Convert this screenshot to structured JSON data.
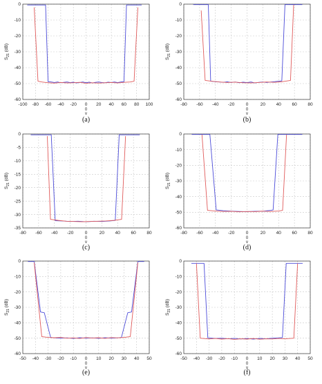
{
  "colors": {
    "blue": "#4a4ad8",
    "red": "#e05a5a",
    "grid": "#c8c8c8",
    "axis": "#333333"
  },
  "chart_data": [
    {
      "id": "a",
      "caption": "(a)",
      "type": "line",
      "ylabel": "S21 (dB)",
      "ylabel_main": "S",
      "ylabel_sub": "21",
      "ylabel_unit": "(dB)",
      "xlabel_zero": "0",
      "xlabel_symbol": "v",
      "xlim": [
        -100,
        100
      ],
      "ylim": [
        -60,
        0
      ],
      "xticks": [
        "-100",
        "-80",
        "-60",
        "-40",
        "-20",
        "0",
        "20",
        "40",
        "60",
        "80",
        "100"
      ],
      "yticks": [
        "0",
        "-10",
        "-20",
        "-30",
        "-40",
        "-50",
        "-60"
      ],
      "series": [
        {
          "color": "blue",
          "x": [
            -93,
            -64,
            -60,
            -55,
            -50,
            -45,
            -40,
            -35,
            -30,
            -25,
            -20,
            -15,
            -10,
            -5,
            0,
            5,
            10,
            15,
            20,
            25,
            30,
            35,
            40,
            45,
            50,
            55,
            60,
            64,
            88
          ],
          "y": [
            -0.5,
            -0.5,
            -48.8,
            -49,
            -49.3,
            -49,
            -49.5,
            -49.2,
            -49,
            -49.4,
            -49.1,
            -49.6,
            -49.3,
            -49,
            -49.5,
            -49.1,
            -49.6,
            -49.2,
            -49,
            -49.3,
            -49.5,
            -49.1,
            -49.3,
            -49,
            -49.4,
            -49,
            -48.8,
            -0.5,
            -0.5
          ]
        },
        {
          "color": "red",
          "x": [
            -82,
            -76,
            -70,
            -60,
            -50,
            -40,
            -30,
            -20,
            -10,
            0,
            10,
            20,
            30,
            40,
            50,
            60,
            70,
            76,
            82
          ],
          "y": [
            -2,
            -48.5,
            -49,
            -49.5,
            -49.7,
            -49.3,
            -49.6,
            -49.5,
            -49.2,
            -49.8,
            -49.5,
            -49.7,
            -49.5,
            -49.3,
            -49.6,
            -49.2,
            -49,
            -48.5,
            -2
          ]
        }
      ]
    },
    {
      "id": "b",
      "caption": "(b)",
      "type": "line",
      "ylabel": "S21 (dB)",
      "ylabel_main": "S",
      "ylabel_sub": "21",
      "ylabel_unit": "(dB)",
      "xlabel_zero": "0",
      "xlabel_symbol": "v",
      "xlim": [
        -80,
        80
      ],
      "ylim": [
        -60,
        0
      ],
      "xticks": [
        "-80",
        "-60",
        "-40",
        "-20",
        "0",
        "20",
        "40",
        "60",
        "80"
      ],
      "yticks": [
        "0",
        "-10",
        "-20",
        "-30",
        "-40",
        "-50",
        "-60"
      ],
      "series": [
        {
          "color": "blue",
          "x": [
            -68,
            -49,
            -46,
            -40,
            -35,
            -30,
            -25,
            -20,
            -15,
            -10,
            -5,
            0,
            5,
            10,
            15,
            20,
            25,
            30,
            35,
            40,
            44,
            48,
            70
          ],
          "y": [
            -0.3,
            -0.3,
            -48.5,
            -48.8,
            -49,
            -49.2,
            -48.9,
            -49.3,
            -49,
            -49.5,
            -49.1,
            -49.4,
            -49,
            -49.6,
            -49.2,
            -49,
            -49.3,
            -49,
            -48.8,
            -48.5,
            -48.3,
            -0.3,
            -0.3
          ]
        },
        {
          "color": "red",
          "x": [
            -58,
            -53,
            -45,
            -35,
            -25,
            -15,
            -5,
            5,
            15,
            25,
            35,
            45,
            55,
            59
          ],
          "y": [
            -4,
            -48,
            -48.5,
            -49,
            -49.3,
            -49.1,
            -49.5,
            -49.6,
            -49.3,
            -49,
            -49.2,
            -48.8,
            -48,
            -0.5
          ]
        }
      ]
    },
    {
      "id": "c",
      "caption": "(c)",
      "type": "line",
      "ylabel": "S21 (dB)",
      "ylabel_main": "S",
      "ylabel_sub": "21",
      "ylabel_unit": "(dB)",
      "xlabel_zero": "0",
      "xlabel_symbol": "v",
      "xlim": [
        -80,
        80
      ],
      "ylim": [
        -35,
        0
      ],
      "xticks": [
        "-80",
        "-60",
        "-40",
        "-20",
        "0",
        "20",
        "40",
        "60",
        "80"
      ],
      "yticks": [
        "0",
        "-5",
        "-10",
        "-15",
        "-20",
        "-25",
        "-30",
        "-35"
      ],
      "series": [
        {
          "color": "blue",
          "x": [
            -70,
            -44,
            -39,
            -30,
            -20,
            -10,
            0,
            10,
            20,
            30,
            37,
            42,
            68
          ],
          "y": [
            -0.3,
            -0.3,
            -32.3,
            -32.4,
            -32.6,
            -32.5,
            -32.7,
            -32.5,
            -32.6,
            -32.4,
            -32.2,
            -0.3,
            -0.3
          ]
        },
        {
          "color": "red",
          "x": [
            -49,
            -45,
            -35,
            -25,
            -15,
            -5,
            5,
            15,
            25,
            35,
            45,
            50
          ],
          "y": [
            -0.8,
            -31.8,
            -32.2,
            -32.5,
            -32.6,
            -32.7,
            -32.6,
            -32.5,
            -32.4,
            -32.2,
            -31.8,
            -0.8
          ]
        }
      ]
    },
    {
      "id": "d",
      "caption": "(d)",
      "type": "line",
      "ylabel": "S21 (dB)",
      "ylabel_main": "S",
      "ylabel_sub": "21",
      "ylabel_unit": "(dB)",
      "xlabel_zero": "0",
      "xlabel_symbol": "v",
      "xlim": [
        -80,
        80
      ],
      "ylim": [
        -60,
        0
      ],
      "xticks": [
        "-80",
        "-60",
        "-40",
        "-20",
        "0",
        "20",
        "40",
        "60",
        "80"
      ],
      "yticks": [
        "0",
        "-10",
        "-20",
        "-30",
        "-40",
        "-50",
        "-60"
      ],
      "series": [
        {
          "color": "blue",
          "x": [
            -70,
            -47,
            -39,
            -30,
            -20,
            -10,
            0,
            10,
            20,
            30,
            33,
            39,
            70
          ],
          "y": [
            -0.3,
            -0.3,
            -48.5,
            -49,
            -49.3,
            -49.5,
            -49.6,
            -49.4,
            -49.3,
            -48.8,
            -48.5,
            -0.3,
            -0.3
          ]
        },
        {
          "color": "red",
          "x": [
            -57,
            -50,
            -40,
            -30,
            -20,
            -10,
            0,
            10,
            20,
            30,
            40,
            45,
            50
          ],
          "y": [
            -0.5,
            -48.8,
            -49.2,
            -49.5,
            -49.4,
            -49.7,
            -49.5,
            -49.6,
            -49.3,
            -49.5,
            -49.2,
            -48.8,
            -0.5
          ]
        }
      ]
    },
    {
      "id": "e",
      "caption": "(e)",
      "type": "line",
      "ylabel": "S21 (dB)",
      "ylabel_main": "S",
      "ylabel_sub": "21",
      "ylabel_unit": "(dB)",
      "xlabel_zero": "0",
      "xlabel_symbol": "v",
      "xlim": [
        -50,
        50
      ],
      "ylim": [
        -60,
        0
      ],
      "xticks": [
        "-50",
        "-40",
        "-30",
        "-20",
        "-10",
        "0",
        "10",
        "20",
        "30",
        "40",
        "50"
      ],
      "yticks": [
        "0",
        "-10",
        "-20",
        "-30",
        "-40",
        "-50",
        "-60"
      ],
      "series": [
        {
          "color": "blue",
          "x": [
            -46,
            -41,
            -36,
            -33,
            -28,
            -25,
            -20,
            -15,
            -10,
            -5,
            0,
            5,
            10,
            15,
            20,
            25,
            28,
            33,
            36,
            41,
            46
          ],
          "y": [
            -0.3,
            -0.3,
            -33,
            -33.5,
            -49.5,
            -49.8,
            -50,
            -49.8,
            -50.2,
            -49.7,
            -50,
            -49.8,
            -50.1,
            -49.7,
            -50,
            -49.8,
            -49.5,
            -33.5,
            -33,
            -0.3,
            -0.3
          ]
        },
        {
          "color": "red",
          "x": [
            -41,
            -35,
            -30,
            -25,
            -20,
            -15,
            -10,
            -5,
            0,
            5,
            10,
            15,
            20,
            25,
            30,
            35,
            41
          ],
          "y": [
            -1,
            -49,
            -49.5,
            -49.7,
            -49.5,
            -50,
            -49.8,
            -50.2,
            -49.6,
            -49.9,
            -49.7,
            -50.1,
            -49.6,
            -49.8,
            -49.5,
            -49,
            -1
          ]
        }
      ]
    },
    {
      "id": "f",
      "caption": "(f)",
      "type": "line",
      "ylabel": "S21 (dB)",
      "ylabel_main": "S",
      "ylabel_sub": "21",
      "ylabel_unit": "(dB)",
      "xlabel_zero": "0",
      "xlabel_symbol": "v",
      "xlim": [
        -50,
        50
      ],
      "ylim": [
        -60,
        0
      ],
      "xticks": [
        "-50",
        "-40",
        "-30",
        "-20",
        "-10",
        "0",
        "10",
        "20",
        "30",
        "40",
        "50"
      ],
      "yticks": [
        "0",
        "-10",
        "-20",
        "-30",
        "-40",
        "-50",
        "-60"
      ],
      "series": [
        {
          "color": "blue",
          "x": [
            -44,
            -34,
            -31,
            -25,
            -20,
            -15,
            -10,
            -5,
            0,
            5,
            10,
            15,
            20,
            25,
            28,
            31,
            44
          ],
          "y": [
            -1.5,
            -1.5,
            -49.8,
            -50.2,
            -50,
            -50.4,
            -50.1,
            -50.5,
            -50.2,
            -50.6,
            -50.1,
            -50.4,
            -50,
            -49.8,
            -49.6,
            -1.5,
            -1.5
          ]
        },
        {
          "color": "red",
          "x": [
            -40,
            -37,
            -30,
            -25,
            -20,
            -15,
            -10,
            -5,
            0,
            5,
            10,
            15,
            20,
            25,
            30,
            37,
            40
          ],
          "y": [
            -1.5,
            -50,
            -50.5,
            -50.2,
            -50.6,
            -50.3,
            -50.8,
            -50.4,
            -50.6,
            -50.2,
            -50.7,
            -50.4,
            -50.5,
            -50.2,
            -50.4,
            -50,
            -1.5
          ]
        }
      ]
    }
  ]
}
